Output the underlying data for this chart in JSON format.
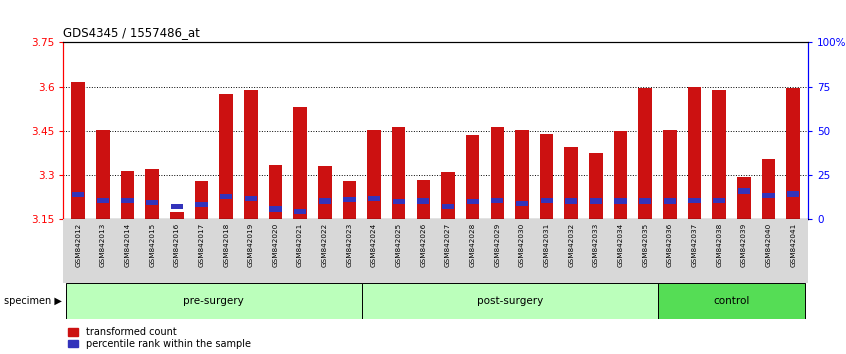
{
  "title": "GDS4345 / 1557486_at",
  "samples": [
    "GSM842012",
    "GSM842013",
    "GSM842014",
    "GSM842015",
    "GSM842016",
    "GSM842017",
    "GSM842018",
    "GSM842019",
    "GSM842020",
    "GSM842021",
    "GSM842022",
    "GSM842023",
    "GSM842024",
    "GSM842025",
    "GSM842026",
    "GSM842027",
    "GSM842028",
    "GSM842029",
    "GSM842030",
    "GSM842031",
    "GSM842032",
    "GSM842033",
    "GSM842034",
    "GSM842035",
    "GSM842036",
    "GSM842037",
    "GSM842038",
    "GSM842039",
    "GSM842040",
    "GSM842041"
  ],
  "red_values": [
    3.615,
    3.455,
    3.315,
    3.32,
    3.175,
    3.28,
    3.575,
    3.59,
    3.335,
    3.53,
    3.33,
    3.28,
    3.455,
    3.465,
    3.285,
    3.31,
    3.435,
    3.465,
    3.455,
    3.44,
    3.395,
    3.375,
    3.45,
    3.595,
    3.455,
    3.6,
    3.59,
    3.295,
    3.355,
    3.595
  ],
  "blue_y_values": [
    3.235,
    3.215,
    3.215,
    3.208,
    3.195,
    3.2,
    3.228,
    3.222,
    3.185,
    3.178,
    3.213,
    3.218,
    3.222,
    3.21,
    3.213,
    3.195,
    3.21,
    3.214,
    3.205,
    3.214,
    3.213,
    3.213,
    3.213,
    3.213,
    3.213,
    3.214,
    3.214,
    3.247,
    3.232,
    3.236
  ],
  "ymin": 3.15,
  "ymax": 3.75,
  "yticks": [
    3.15,
    3.3,
    3.45,
    3.6,
    3.75
  ],
  "ytick_labels": [
    "3.15",
    "3.3",
    "3.45",
    "3.6",
    "3.75"
  ],
  "right_yticks": [
    0,
    25,
    50,
    75,
    100
  ],
  "right_ytick_labels": [
    "0",
    "25",
    "50",
    "75",
    "100%"
  ],
  "groups": [
    {
      "name": "pre-surgery",
      "start": 0,
      "end": 12
    },
    {
      "name": "post-surgery",
      "start": 12,
      "end": 24
    },
    {
      "name": "control",
      "start": 24,
      "end": 30
    }
  ],
  "group_colors": [
    "#bbffbb",
    "#bbffbb",
    "#55dd55"
  ],
  "red_color": "#cc1111",
  "blue_color": "#3333bb",
  "bar_width": 0.55,
  "legend_red": "transformed count",
  "legend_blue": "percentile rank within the sample",
  "specimen_label": "specimen"
}
